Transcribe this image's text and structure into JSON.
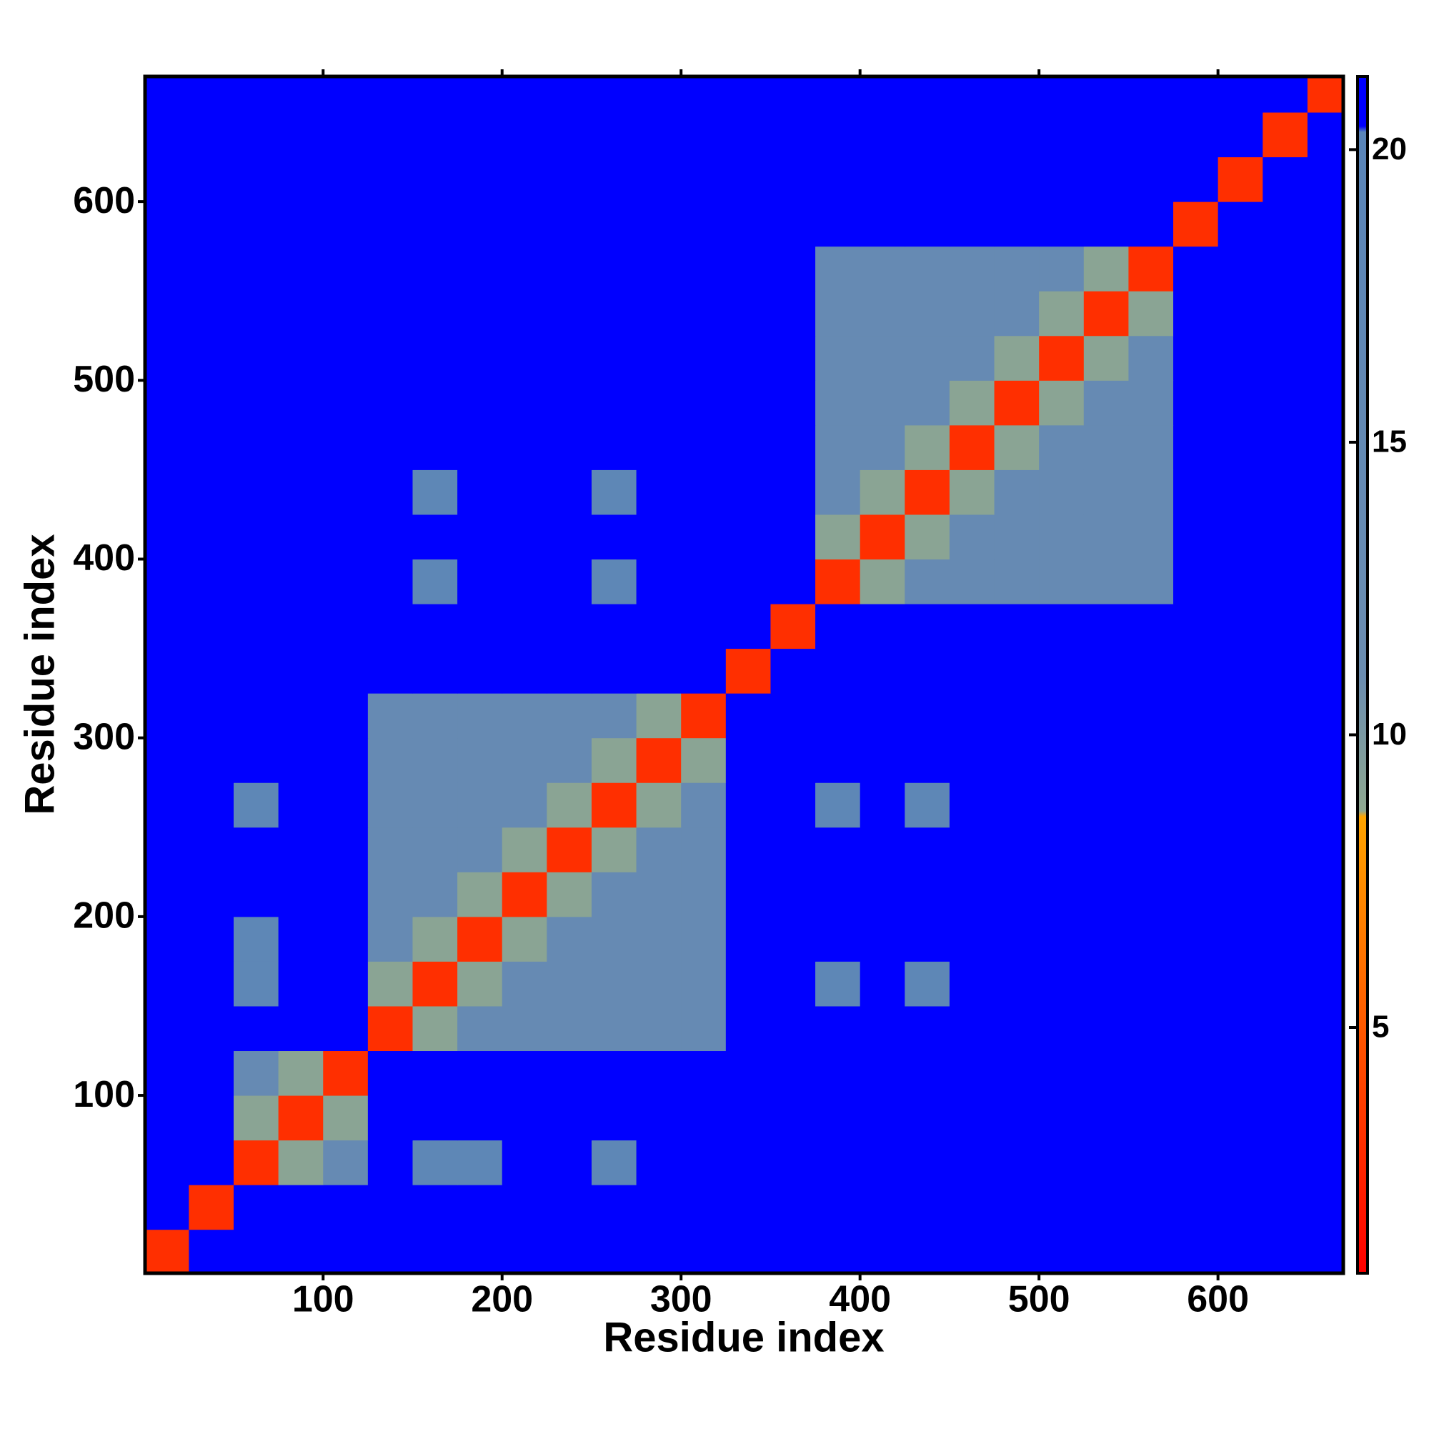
{
  "chart_data": {
    "type": "heatmap",
    "x_label": "Residue index",
    "y_label": "Residue index",
    "bins": [
      0,
      25,
      50,
      75,
      100,
      125,
      150,
      175,
      200,
      225,
      250,
      275,
      300,
      325,
      350,
      375,
      400,
      425,
      450,
      475,
      500,
      525,
      550,
      575,
      600,
      625,
      650,
      675
    ],
    "xlim": [
      0.5,
      670
    ],
    "ylim": [
      0.5,
      670
    ],
    "xticks": [
      100,
      200,
      300,
      400,
      500,
      600
    ],
    "yticks": [
      100,
      200,
      300,
      400,
      500,
      600
    ],
    "colorbar_lim": [
      0.8,
      21.25
    ],
    "colorbar_ticks": [
      5,
      10,
      15,
      20
    ],
    "colorscale": [
      [
        0.8,
        "#ff0000"
      ],
      [
        8.6,
        "#ffa500"
      ],
      [
        8.7,
        "#8fa890"
      ],
      [
        11,
        "#6b8db0"
      ],
      [
        20.3,
        "#5a85b8"
      ],
      [
        20.4,
        "#0000ff"
      ],
      [
        21.25,
        "#0000ff"
      ]
    ],
    "z": [
      [
        3,
        21,
        21,
        21,
        21,
        21,
        21,
        21,
        21,
        21,
        21,
        21,
        21,
        21,
        21,
        21,
        21,
        21,
        21,
        21,
        21,
        21,
        21,
        21,
        21,
        21,
        21
      ],
      [
        21,
        3,
        21,
        21,
        21,
        21,
        21,
        21,
        21,
        21,
        21,
        21,
        21,
        21,
        21,
        21,
        21,
        21,
        21,
        21,
        21,
        21,
        21,
        21,
        21,
        21,
        21
      ],
      [
        21,
        21,
        3,
        9,
        14,
        21,
        18,
        18,
        21,
        21,
        18,
        21,
        21,
        21,
        21,
        21,
        21,
        21,
        21,
        21,
        21,
        21,
        21,
        21,
        21,
        21,
        21
      ],
      [
        21,
        21,
        9,
        3,
        9,
        21,
        21,
        21,
        21,
        21,
        21,
        21,
        21,
        21,
        21,
        21,
        21,
        21,
        21,
        21,
        21,
        21,
        21,
        21,
        21,
        21,
        21
      ],
      [
        21,
        21,
        14,
        9,
        3,
        21,
        21,
        21,
        21,
        21,
        21,
        21,
        21,
        21,
        21,
        21,
        21,
        21,
        21,
        21,
        21,
        21,
        21,
        21,
        21,
        21,
        21
      ],
      [
        21,
        21,
        21,
        21,
        21,
        3,
        9,
        14,
        14,
        14,
        14,
        14,
        14,
        21,
        21,
        21,
        21,
        21,
        21,
        21,
        21,
        21,
        21,
        21,
        21,
        21,
        21
      ],
      [
        21,
        21,
        18,
        21,
        21,
        9,
        3,
        9,
        14,
        14,
        14,
        14,
        14,
        21,
        21,
        18,
        21,
        18,
        21,
        21,
        21,
        21,
        21,
        21,
        21,
        21,
        21
      ],
      [
        21,
        21,
        18,
        21,
        21,
        14,
        9,
        3,
        9,
        14,
        14,
        14,
        14,
        21,
        21,
        21,
        21,
        21,
        21,
        21,
        21,
        21,
        21,
        21,
        21,
        21,
        21
      ],
      [
        21,
        21,
        21,
        21,
        21,
        14,
        14,
        9,
        3,
        9,
        14,
        14,
        14,
        21,
        21,
        21,
        21,
        21,
        21,
        21,
        21,
        21,
        21,
        21,
        21,
        21,
        21
      ],
      [
        21,
        21,
        21,
        21,
        21,
        14,
        14,
        14,
        9,
        3,
        9,
        14,
        14,
        21,
        21,
        21,
        21,
        21,
        21,
        21,
        21,
        21,
        21,
        21,
        21,
        21,
        21
      ],
      [
        21,
        21,
        18,
        21,
        21,
        14,
        14,
        14,
        14,
        9,
        3,
        9,
        14,
        21,
        21,
        18,
        21,
        18,
        21,
        21,
        21,
        21,
        21,
        21,
        21,
        21,
        21
      ],
      [
        21,
        21,
        21,
        21,
        21,
        14,
        14,
        14,
        14,
        14,
        9,
        3,
        9,
        21,
        21,
        21,
        21,
        21,
        21,
        21,
        21,
        21,
        21,
        21,
        21,
        21,
        21
      ],
      [
        21,
        21,
        21,
        21,
        21,
        14,
        14,
        14,
        14,
        14,
        14,
        9,
        3,
        21,
        21,
        21,
        21,
        21,
        21,
        21,
        21,
        21,
        21,
        21,
        21,
        21,
        21
      ],
      [
        21,
        21,
        21,
        21,
        21,
        21,
        21,
        21,
        21,
        21,
        21,
        21,
        21,
        3,
        21,
        21,
        21,
        21,
        21,
        21,
        21,
        21,
        21,
        21,
        21,
        21,
        21
      ],
      [
        21,
        21,
        21,
        21,
        21,
        21,
        21,
        21,
        21,
        21,
        21,
        21,
        21,
        21,
        3,
        21,
        21,
        21,
        21,
        21,
        21,
        21,
        21,
        21,
        21,
        21,
        21
      ],
      [
        21,
        21,
        21,
        21,
        21,
        21,
        18,
        21,
        21,
        21,
        18,
        21,
        21,
        21,
        21,
        3,
        9,
        14,
        14,
        14,
        14,
        14,
        14,
        21,
        21,
        21,
        21
      ],
      [
        21,
        21,
        21,
        21,
        21,
        21,
        21,
        21,
        21,
        21,
        21,
        21,
        21,
        21,
        21,
        9,
        3,
        9,
        14,
        14,
        14,
        14,
        14,
        21,
        21,
        21,
        21
      ],
      [
        21,
        21,
        21,
        21,
        21,
        21,
        18,
        21,
        21,
        21,
        18,
        21,
        21,
        21,
        21,
        14,
        9,
        3,
        9,
        14,
        14,
        14,
        14,
        21,
        21,
        21,
        21
      ],
      [
        21,
        21,
        21,
        21,
        21,
        21,
        21,
        21,
        21,
        21,
        21,
        21,
        21,
        21,
        21,
        14,
        14,
        9,
        3,
        9,
        14,
        14,
        14,
        21,
        21,
        21,
        21
      ],
      [
        21,
        21,
        21,
        21,
        21,
        21,
        21,
        21,
        21,
        21,
        21,
        21,
        21,
        21,
        21,
        14,
        14,
        14,
        9,
        3,
        9,
        14,
        14,
        21,
        21,
        21,
        21
      ],
      [
        21,
        21,
        21,
        21,
        21,
        21,
        21,
        21,
        21,
        21,
        21,
        21,
        21,
        21,
        21,
        14,
        14,
        14,
        14,
        9,
        3,
        9,
        14,
        21,
        21,
        21,
        21
      ],
      [
        21,
        21,
        21,
        21,
        21,
        21,
        21,
        21,
        21,
        21,
        21,
        21,
        21,
        21,
        21,
        14,
        14,
        14,
        14,
        14,
        9,
        3,
        9,
        21,
        21,
        21,
        21
      ],
      [
        21,
        21,
        21,
        21,
        21,
        21,
        21,
        21,
        21,
        21,
        21,
        21,
        21,
        21,
        21,
        14,
        14,
        14,
        14,
        14,
        14,
        9,
        3,
        21,
        21,
        21,
        21
      ],
      [
        21,
        21,
        21,
        21,
        21,
        21,
        21,
        21,
        21,
        21,
        21,
        21,
        21,
        21,
        21,
        21,
        21,
        21,
        21,
        21,
        21,
        21,
        21,
        3,
        21,
        21,
        21
      ],
      [
        21,
        21,
        21,
        21,
        21,
        21,
        21,
        21,
        21,
        21,
        21,
        21,
        21,
        21,
        21,
        21,
        21,
        21,
        21,
        21,
        21,
        21,
        21,
        21,
        3,
        21,
        21
      ],
      [
        21,
        21,
        21,
        21,
        21,
        21,
        21,
        21,
        21,
        21,
        21,
        21,
        21,
        21,
        21,
        21,
        21,
        21,
        21,
        21,
        21,
        21,
        21,
        21,
        21,
        3,
        21
      ],
      [
        21,
        21,
        21,
        21,
        21,
        21,
        21,
        21,
        21,
        21,
        21,
        21,
        21,
        21,
        21,
        21,
        21,
        21,
        21,
        21,
        21,
        21,
        21,
        21,
        21,
        21,
        3
      ]
    ]
  }
}
